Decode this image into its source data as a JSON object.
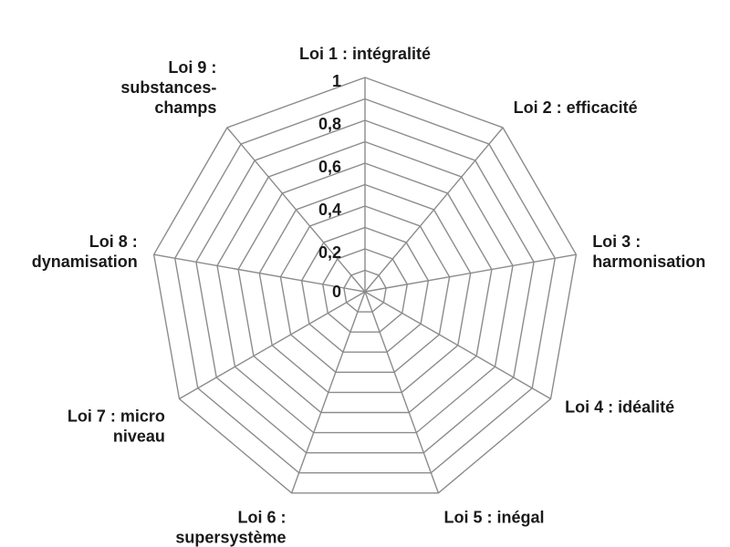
{
  "chart_data": {
    "type": "radar",
    "title": "",
    "axes": [
      {
        "label_lines": [
          "Loi 1 : intégralité"
        ]
      },
      {
        "label_lines": [
          "Loi 2 : efficacité"
        ]
      },
      {
        "label_lines": [
          "Loi 3 :",
          "harmonisation"
        ]
      },
      {
        "label_lines": [
          "Loi 4 : idéalité"
        ]
      },
      {
        "label_lines": [
          "Loi 5 : inégal"
        ]
      },
      {
        "label_lines": [
          "Loi 6 :",
          "supersystème"
        ]
      },
      {
        "label_lines": [
          "Loi 7 : micro",
          "niveau"
        ]
      },
      {
        "label_lines": [
          "Loi 8 :",
          "dynamisation"
        ]
      },
      {
        "label_lines": [
          "Loi 9 :",
          "substances-",
          "champs"
        ]
      }
    ],
    "rlim": [
      0,
      1
    ],
    "ticks": [
      {
        "value": 0,
        "label": "0"
      },
      {
        "value": 0.2,
        "label": "0,2"
      },
      {
        "value": 0.4,
        "label": "0,4"
      },
      {
        "value": 0.6,
        "label": "0,6"
      },
      {
        "value": 0.8,
        "label": "0,8"
      },
      {
        "value": 1,
        "label": "1"
      }
    ],
    "grid_rings": 10,
    "series": [],
    "grid": true,
    "legend": "none"
  }
}
